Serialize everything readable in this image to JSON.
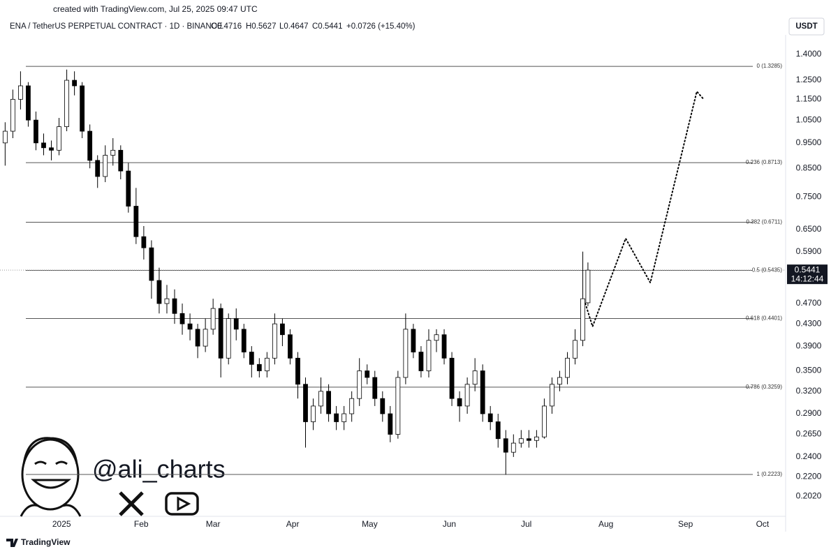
{
  "header": {
    "created": "created with TradingView.com, Jul 25, 2025 09:47 UTC",
    "symbol": "ENA / TetherUS PERPETUAL CONTRACT · 1D · BINANCE",
    "ohlc": [
      "O0.4716",
      "H0.5627",
      "L0.4647",
      "C0.5441",
      "+0.0726 (+15.40%)"
    ],
    "currency": "USDT"
  },
  "watermark": {
    "handle": "@ali_charts"
  },
  "footer": {
    "brand": "TradingView"
  },
  "chart_data": {
    "type": "candlestick",
    "log_scale": true,
    "ylim": [
      0.173,
      1.525
    ],
    "xlim": [
      -24,
      282
    ],
    "yticks": [
      {
        "value": 1.4,
        "label": "1.4000"
      },
      {
        "value": 1.25,
        "label": "1.2500"
      },
      {
        "value": 1.15,
        "label": "1.1500"
      },
      {
        "value": 1.05,
        "label": "1.0500"
      },
      {
        "value": 0.95,
        "label": "0.9500"
      },
      {
        "value": 0.85,
        "label": "0.8500"
      },
      {
        "value": 0.75,
        "label": "0.7500"
      },
      {
        "value": 0.65,
        "label": "0.6500"
      },
      {
        "value": 0.59,
        "label": "0.5900"
      },
      {
        "value": 0.47,
        "label": "0.4700"
      },
      {
        "value": 0.43,
        "label": "0.4300"
      },
      {
        "value": 0.39,
        "label": "0.3900"
      },
      {
        "value": 0.35,
        "label": "0.3500"
      },
      {
        "value": 0.32,
        "label": "0.3200"
      },
      {
        "value": 0.29,
        "label": "0.2900"
      },
      {
        "value": 0.265,
        "label": "0.2650"
      },
      {
        "value": 0.24,
        "label": "0.2400"
      },
      {
        "value": 0.22,
        "label": "0.2200"
      },
      {
        "value": 0.202,
        "label": "0.2020"
      }
    ],
    "xticks": [
      {
        "value": 0,
        "label": "2025"
      },
      {
        "value": 31,
        "label": "Feb"
      },
      {
        "value": 59,
        "label": "Mar"
      },
      {
        "value": 90,
        "label": "Apr"
      },
      {
        "value": 120,
        "label": "May"
      },
      {
        "value": 151,
        "label": "Jun"
      },
      {
        "value": 181,
        "label": "Jul"
      },
      {
        "value": 212,
        "label": "Aug"
      },
      {
        "value": 243,
        "label": "Sep"
      },
      {
        "value": 273,
        "label": "Oct"
      }
    ],
    "up_color": "#ffffff",
    "down_color": "#000000",
    "outline_color": "#000000",
    "x": [
      -22,
      -19,
      -16,
      -13,
      -10,
      -7,
      -4,
      -1,
      2,
      5,
      8,
      11,
      14,
      17,
      20,
      23,
      26,
      29,
      32,
      35,
      38,
      41,
      44,
      47,
      50,
      53,
      56,
      59,
      62,
      65,
      68,
      71,
      74,
      77,
      80,
      83,
      86,
      89,
      92,
      95,
      98,
      101,
      104,
      107,
      110,
      113,
      116,
      119,
      122,
      125,
      128,
      131,
      134,
      137,
      140,
      143,
      146,
      149,
      152,
      155,
      158,
      161,
      164,
      167,
      170,
      173,
      176,
      179,
      182,
      185,
      188,
      191,
      194,
      197,
      200,
      203,
      205
    ],
    "open": [
      0.95,
      1.0,
      1.15,
      1.22,
      1.05,
      0.95,
      0.93,
      0.92,
      1.02,
      1.25,
      1.22,
      1.0,
      0.88,
      0.82,
      0.9,
      0.92,
      0.84,
      0.72,
      0.63,
      0.6,
      0.52,
      0.47,
      0.48,
      0.45,
      0.43,
      0.42,
      0.39,
      0.42,
      0.46,
      0.37,
      0.44,
      0.42,
      0.38,
      0.36,
      0.35,
      0.37,
      0.43,
      0.41,
      0.37,
      0.33,
      0.28,
      0.3,
      0.32,
      0.29,
      0.28,
      0.29,
      0.31,
      0.35,
      0.34,
      0.31,
      0.29,
      0.265,
      0.34,
      0.42,
      0.38,
      0.35,
      0.4,
      0.41,
      0.37,
      0.31,
      0.3,
      0.33,
      0.35,
      0.29,
      0.28,
      0.26,
      0.245,
      0.255,
      0.26,
      0.258,
      0.262,
      0.3,
      0.33,
      0.34,
      0.37,
      0.4,
      0.4716
    ],
    "high": [
      1.04,
      1.2,
      1.3,
      1.24,
      1.09,
      0.99,
      0.96,
      1.06,
      1.31,
      1.3,
      1.24,
      1.03,
      0.9,
      0.94,
      0.97,
      0.94,
      0.87,
      0.78,
      0.66,
      0.62,
      0.55,
      0.51,
      0.5,
      0.47,
      0.45,
      0.43,
      0.44,
      0.48,
      0.47,
      0.45,
      0.46,
      0.43,
      0.39,
      0.37,
      0.38,
      0.45,
      0.44,
      0.42,
      0.38,
      0.34,
      0.31,
      0.34,
      0.33,
      0.3,
      0.3,
      0.32,
      0.37,
      0.36,
      0.35,
      0.32,
      0.3,
      0.35,
      0.45,
      0.43,
      0.39,
      0.42,
      0.42,
      0.42,
      0.38,
      0.32,
      0.34,
      0.37,
      0.36,
      0.3,
      0.29,
      0.27,
      0.265,
      0.27,
      0.27,
      0.27,
      0.31,
      0.34,
      0.35,
      0.38,
      0.42,
      0.59,
      0.5627
    ],
    "low": [
      0.86,
      0.97,
      1.1,
      1.02,
      0.92,
      0.9,
      0.88,
      0.9,
      1.0,
      1.17,
      0.97,
      0.85,
      0.78,
      0.8,
      0.86,
      0.81,
      0.7,
      0.61,
      0.57,
      0.48,
      0.45,
      0.45,
      0.43,
      0.41,
      0.4,
      0.37,
      0.38,
      0.41,
      0.34,
      0.36,
      0.4,
      0.37,
      0.34,
      0.34,
      0.34,
      0.36,
      0.39,
      0.36,
      0.31,
      0.25,
      0.27,
      0.29,
      0.28,
      0.27,
      0.27,
      0.28,
      0.3,
      0.33,
      0.3,
      0.28,
      0.256,
      0.26,
      0.33,
      0.37,
      0.34,
      0.34,
      0.38,
      0.36,
      0.3,
      0.28,
      0.29,
      0.32,
      0.28,
      0.27,
      0.25,
      0.222,
      0.24,
      0.25,
      0.25,
      0.25,
      0.26,
      0.29,
      0.32,
      0.33,
      0.36,
      0.39,
      0.4647
    ],
    "close": [
      1.0,
      1.15,
      1.22,
      1.05,
      0.95,
      0.93,
      0.92,
      1.02,
      1.25,
      1.22,
      1.0,
      0.88,
      0.82,
      0.9,
      0.92,
      0.84,
      0.72,
      0.63,
      0.6,
      0.52,
      0.47,
      0.48,
      0.45,
      0.43,
      0.42,
      0.39,
      0.42,
      0.46,
      0.37,
      0.44,
      0.42,
      0.38,
      0.36,
      0.35,
      0.37,
      0.43,
      0.41,
      0.37,
      0.33,
      0.28,
      0.3,
      0.32,
      0.29,
      0.28,
      0.29,
      0.31,
      0.35,
      0.34,
      0.31,
      0.29,
      0.265,
      0.34,
      0.42,
      0.38,
      0.35,
      0.4,
      0.41,
      0.37,
      0.31,
      0.3,
      0.33,
      0.35,
      0.29,
      0.28,
      0.26,
      0.245,
      0.255,
      0.26,
      0.258,
      0.262,
      0.3,
      0.33,
      0.34,
      0.37,
      0.4,
      0.48,
      0.5441
    ],
    "last_price": {
      "value": 0.5441,
      "label": "0.5441",
      "countdown": "14:12:44",
      "color": "#131722"
    },
    "fib_levels": [
      {
        "value": 1.3285,
        "label": "0 (1.3285)"
      },
      {
        "value": 0.8713,
        "label": "0.236 (0.8713)"
      },
      {
        "value": 0.6711,
        "label": "0.382 (0.6711)"
      },
      {
        "value": 0.5435,
        "label": "0.5 (0.5435)"
      },
      {
        "value": 0.4401,
        "label": "0.618 (0.4401)"
      },
      {
        "value": 0.3259,
        "label": "0.786 (0.3259)"
      },
      {
        "value": 0.2223,
        "label": "1 (0.2223)"
      }
    ],
    "projection": {
      "x": [
        204,
        206.8,
        219.7,
        229.3,
        247.4,
        250.1
      ],
      "values": [
        0.47,
        0.425,
        0.625,
        0.515,
        1.19,
        1.15
      ]
    }
  }
}
